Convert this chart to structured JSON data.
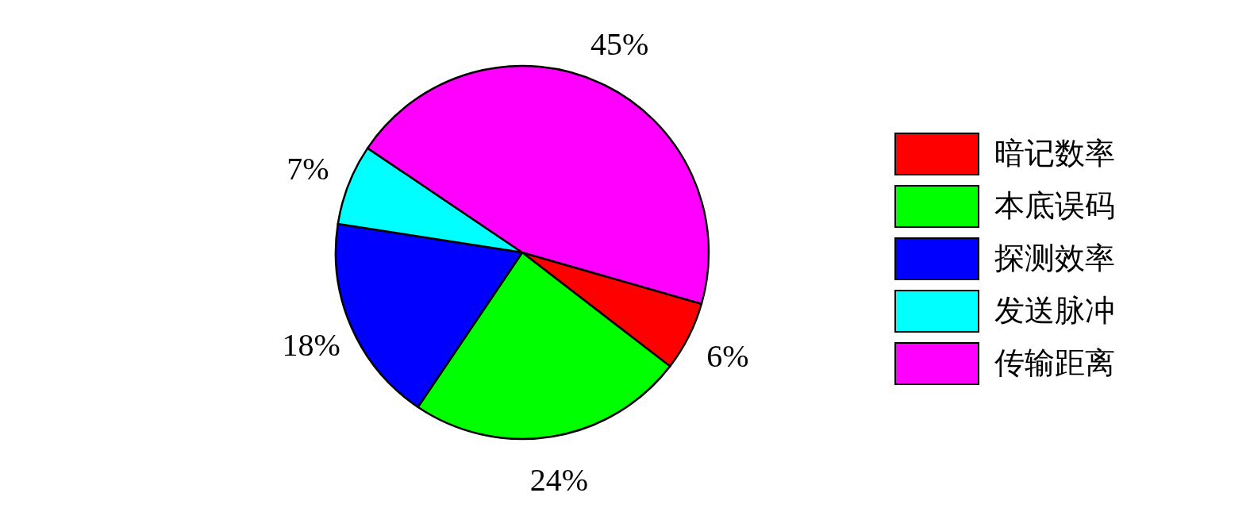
{
  "chart_data": {
    "type": "pie",
    "categories": [
      "暗记数率",
      "本底误码",
      "探测效率",
      "发送脉冲",
      "传输距离"
    ],
    "values": [
      6,
      24,
      18,
      7,
      45
    ],
    "colors": [
      "#ff0000",
      "#00ff00",
      "#0000ff",
      "#00ffff",
      "#ff00ff"
    ],
    "value_labels": [
      "6%",
      "24%",
      "18%",
      "7%",
      "45%"
    ],
    "legend": "right"
  }
}
